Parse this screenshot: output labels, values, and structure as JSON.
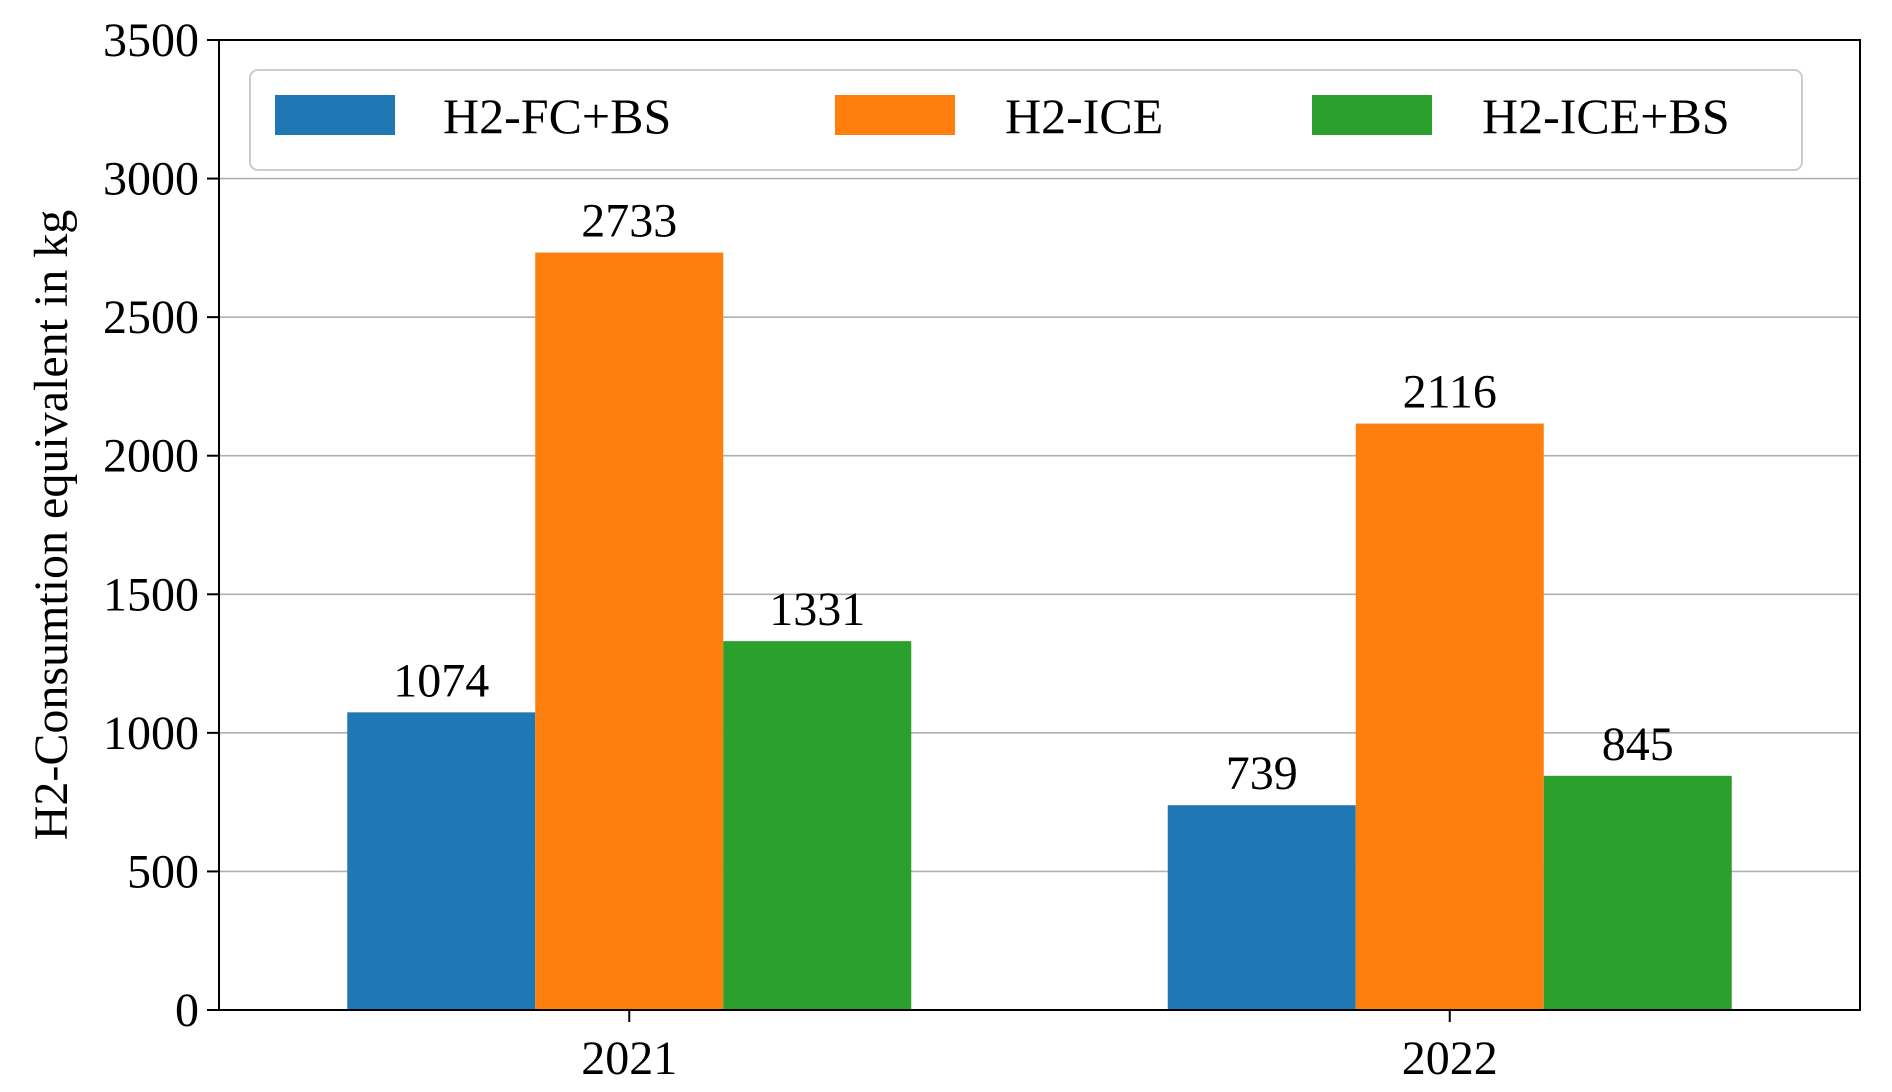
{
  "chart_data": {
    "type": "bar",
    "categories": [
      "2021",
      "2022"
    ],
    "series": [
      {
        "name": "H2-FC+BS",
        "values": [
          1074,
          739
        ],
        "color": "#1f77b4"
      },
      {
        "name": "H2-ICE",
        "values": [
          2733,
          2116
        ],
        "color": "#ff7f0e"
      },
      {
        "name": "H2-ICE+BS",
        "values": [
          1331,
          845
        ],
        "color": "#2ca02c"
      }
    ],
    "title": "",
    "xlabel": "",
    "ylabel": "H2-Consumtion equivalent in kg",
    "ylim": [
      0,
      3500
    ],
    "yticks": [
      0,
      500,
      1000,
      1500,
      2000,
      2500,
      3000,
      3500
    ],
    "grid": "horizontal",
    "legend_position": "top",
    "data_labels": true
  }
}
